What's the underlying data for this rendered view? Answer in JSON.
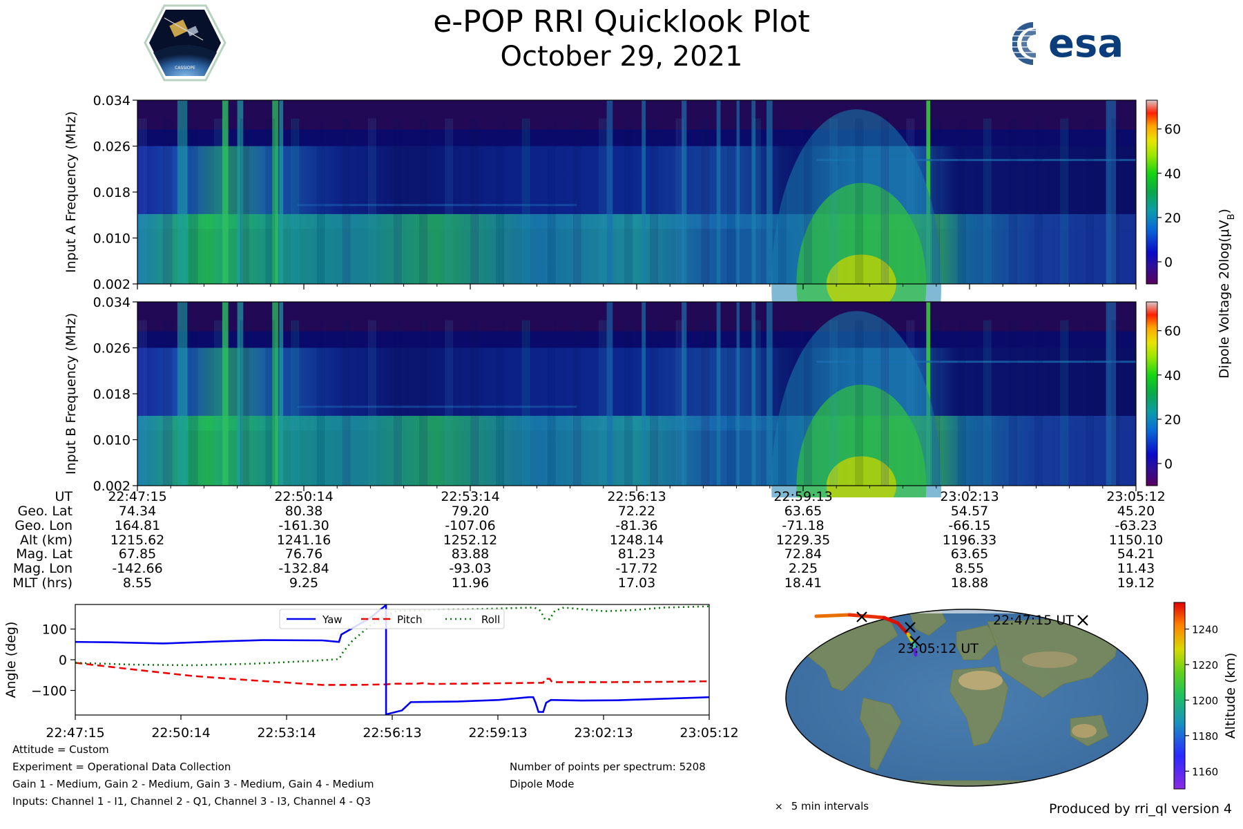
{
  "title": "e-POP RRI Quicklook Plot",
  "subtitle": "October 29, 2021",
  "logos": {
    "left": "CASSIOPE",
    "right": "esa"
  },
  "colorbar_top": {
    "label": "Dipole Voltage 20log(μV_B)",
    "ticks": [
      "60",
      "40",
      "20",
      "0"
    ],
    "range": [
      -10,
      73
    ]
  },
  "colorbar_map": {
    "label": "Altitude (km)",
    "ticks": [
      "1240",
      "1220",
      "1200",
      "1180",
      "1160"
    ],
    "range": [
      1150,
      1255
    ]
  },
  "ephemeris": {
    "row_labels": [
      "UT",
      "Geo. Lat",
      "Geo. Lon",
      "Alt (km)",
      "Mag. Lat",
      "Mag. Lon",
      "MLT (hrs)"
    ],
    "columns": [
      [
        "22:47:15",
        "74.34",
        "164.81",
        "1215.62",
        "67.85",
        "-142.66",
        "8.55"
      ],
      [
        "22:50:14",
        "80.38",
        "-161.30",
        "1241.16",
        "76.76",
        "-132.84",
        "9.25"
      ],
      [
        "22:53:14",
        "79.20",
        "-107.06",
        "1252.12",
        "83.88",
        "-93.03",
        "11.96"
      ],
      [
        "22:56:13",
        "72.22",
        "-81.36",
        "1248.14",
        "81.23",
        "-17.72",
        "17.03"
      ],
      [
        "22:59:13",
        "63.65",
        "-71.18",
        "1229.35",
        "72.84",
        "2.25",
        "18.41"
      ],
      [
        "23:02:13",
        "54.57",
        "-66.15",
        "1196.33",
        "63.65",
        "8.55",
        "18.88"
      ],
      [
        "23:05:12",
        "45.20",
        "-63.23",
        "1150.10",
        "54.21",
        "11.43",
        "19.12"
      ]
    ]
  },
  "chart_data": [
    {
      "type": "heatmap",
      "ylabel": "Input A Frequency (MHz)",
      "yticks": [
        "0.002",
        "0.010",
        "0.018",
        "0.026",
        "0.034"
      ],
      "ylim": [
        0.002,
        0.034
      ],
      "xticks": [
        "22:47:15",
        "22:50:14",
        "22:53:14",
        "22:56:13",
        "22:59:13",
        "23:02:13",
        "23:05:12"
      ],
      "zlim": [
        -10,
        73
      ]
    },
    {
      "type": "heatmap",
      "ylabel": "Input B Frequency (MHz)",
      "yticks": [
        "0.002",
        "0.010",
        "0.018",
        "0.026",
        "0.034"
      ],
      "ylim": [
        0.002,
        0.034
      ],
      "xticks": [
        "22:47:15",
        "22:50:14",
        "22:53:14",
        "22:56:13",
        "22:59:13",
        "23:02:13",
        "23:05:12"
      ],
      "zlim": [
        -10,
        73
      ]
    },
    {
      "type": "line",
      "ylabel": "Angle (deg)",
      "ylim": [
        -180,
        180
      ],
      "yticks": [
        "100",
        "0",
        "−100"
      ],
      "xticks": [
        "22:47:15",
        "22:50:14",
        "22:53:14",
        "22:56:13",
        "22:59:13",
        "23:02:13",
        "23:05:12"
      ],
      "xlim": [
        0,
        1077
      ],
      "legend_position": "upper-center",
      "series": [
        {
          "name": "Yaw",
          "color": "#0000ee",
          "style": "solid",
          "points": [
            [
              0,
              58
            ],
            [
              60,
              57
            ],
            [
              150,
              53
            ],
            [
              250,
              60
            ],
            [
              320,
              64
            ],
            [
              420,
              63
            ],
            [
              448,
              58
            ],
            [
              452,
              82
            ],
            [
              500,
              135
            ],
            [
              526,
              175
            ],
            [
              527,
              178
            ],
            [
              528,
              -178
            ],
            [
              555,
              -165
            ],
            [
              570,
              -138
            ],
            [
              650,
              -136
            ],
            [
              720,
              -131
            ],
            [
              770,
              -122
            ],
            [
              778,
              -122
            ],
            [
              782,
              -140
            ],
            [
              787,
              -170
            ],
            [
              795,
              -170
            ],
            [
              800,
              -140
            ],
            [
              808,
              -131
            ],
            [
              860,
              -133
            ],
            [
              920,
              -132
            ],
            [
              1000,
              -127
            ],
            [
              1077,
              -122
            ]
          ]
        },
        {
          "name": "Pitch",
          "color": "#ee0000",
          "style": "dashed",
          "points": [
            [
              0,
              -10
            ],
            [
              100,
              -32
            ],
            [
              200,
              -53
            ],
            [
              300,
              -67
            ],
            [
              420,
              -82
            ],
            [
              480,
              -82
            ],
            [
              530,
              -80
            ],
            [
              540,
              -78
            ],
            [
              580,
              -78
            ],
            [
              590,
              -76
            ],
            [
              605,
              -79
            ],
            [
              700,
              -77
            ],
            [
              795,
              -75
            ],
            [
              798,
              -62
            ],
            [
              806,
              -62
            ],
            [
              810,
              -73
            ],
            [
              900,
              -73
            ],
            [
              1000,
              -72
            ],
            [
              1077,
              -70
            ]
          ]
        },
        {
          "name": "Roll",
          "color": "#007700",
          "style": "dotted",
          "points": [
            [
              0,
              -10
            ],
            [
              100,
              -16
            ],
            [
              200,
              -18
            ],
            [
              300,
              -13
            ],
            [
              400,
              -4
            ],
            [
              448,
              2
            ],
            [
              455,
              25
            ],
            [
              470,
              60
            ],
            [
              500,
              110
            ],
            [
              527,
              142
            ],
            [
              545,
              158
            ],
            [
              600,
              162
            ],
            [
              680,
              165
            ],
            [
              780,
              170
            ],
            [
              790,
              160
            ],
            [
              798,
              132
            ],
            [
              806,
              132
            ],
            [
              815,
              160
            ],
            [
              830,
              170
            ],
            [
              900,
              158
            ],
            [
              950,
              162
            ],
            [
              1000,
              170
            ],
            [
              1077,
              174
            ]
          ]
        }
      ]
    },
    {
      "type": "scatter",
      "projection": "world map",
      "colorbar": "Altitude (km)",
      "annotations": [
        "22:47:15 UT",
        "23:05:12 UT"
      ],
      "legend": "5 min intervals"
    }
  ],
  "info_left": [
    "Attitude = Custom",
    "Experiment = Operational Data Collection",
    "Gain 1 - Medium, Gain 2 - Medium, Gain 3 - Medium, Gain 4 - Medium",
    "Inputs: Channel 1 - I1, Channel 2 - Q1, Channel 3 - I3, Channel 4 - Q3"
  ],
  "info_right": [
    "Number of points per spectrum: 5208",
    "Dipole Mode"
  ],
  "produced_by": "Produced by rri_ql version 4"
}
